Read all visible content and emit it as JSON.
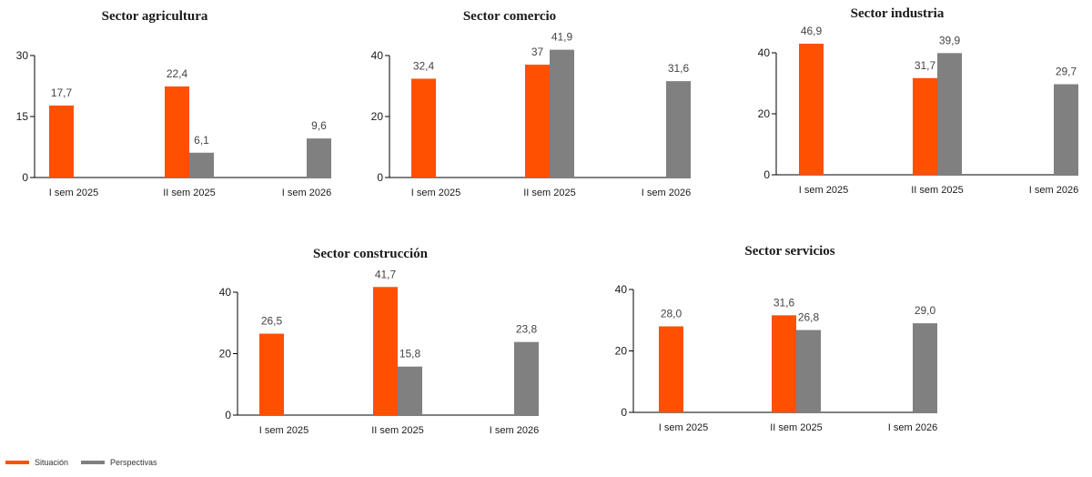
{
  "colors": {
    "situacion": "#FF5000",
    "perspectivas": "#808080"
  },
  "legend": {
    "items": [
      "Situación",
      "Perspectivas"
    ]
  },
  "chart_data": [
    {
      "type": "bar",
      "title": "Sector agricultura",
      "categories": [
        "I sem 2025",
        "II sem 2025",
        "I sem 2026"
      ],
      "yticks": [
        "0",
        "15",
        "30"
      ],
      "ylim": [
        0,
        30
      ],
      "series": [
        {
          "name": "Situación",
          "values": [
            17.7,
            22.4,
            null
          ],
          "labels": [
            "17,7",
            "22,4",
            ""
          ]
        },
        {
          "name": "Perspectivas",
          "values": [
            null,
            6.1,
            9.6
          ],
          "labels": [
            "",
            "6,1",
            "9,6"
          ]
        }
      ]
    },
    {
      "type": "bar",
      "title": "Sector comercio",
      "categories": [
        "I sem 2025",
        "II sem 2025",
        "I sem 2026"
      ],
      "yticks": [
        "0",
        "20",
        "40"
      ],
      "ylim": [
        0,
        40
      ],
      "series": [
        {
          "name": "Situación",
          "values": [
            32.4,
            37,
            null
          ],
          "labels": [
            "32,4",
            "37",
            ""
          ]
        },
        {
          "name": "Perspectivas",
          "values": [
            null,
            41.9,
            31.6
          ],
          "labels": [
            "",
            "41,9",
            "31,6"
          ]
        }
      ]
    },
    {
      "type": "bar",
      "title": "Sector industria",
      "categories": [
        "I sem 2025",
        "II sem 2025",
        "I sem 2026"
      ],
      "yticks": [
        "0",
        "20",
        "40"
      ],
      "ylim": [
        0,
        40
      ],
      "series": [
        {
          "name": "Situación",
          "values": [
            46.9,
            31.7,
            null
          ],
          "labels": [
            "46,9",
            "31,7",
            ""
          ]
        },
        {
          "name": "Perspectivas",
          "values": [
            null,
            39.9,
            29.7
          ],
          "labels": [
            "",
            "39,9",
            "29,7"
          ]
        }
      ]
    },
    {
      "type": "bar",
      "title": "Sector construcción",
      "categories": [
        "I sem 2025",
        "II sem 2025",
        "I sem 2026"
      ],
      "yticks": [
        "0",
        "20",
        "40"
      ],
      "ylim": [
        0,
        40
      ],
      "series": [
        {
          "name": "Situación",
          "values": [
            26.5,
            41.7,
            null
          ],
          "labels": [
            "26,5",
            "41,7",
            ""
          ]
        },
        {
          "name": "Perspectivas",
          "values": [
            null,
            15.8,
            23.8
          ],
          "labels": [
            "",
            "15,8",
            "23,8"
          ]
        }
      ]
    },
    {
      "type": "bar",
      "title": "Sector servicios",
      "categories": [
        "I sem 2025",
        "II sem 2025",
        "I sem 2026"
      ],
      "yticks": [
        "0",
        "20",
        "40"
      ],
      "ylim": [
        0,
        40
      ],
      "series": [
        {
          "name": "Situación",
          "values": [
            28.0,
            31.6,
            null
          ],
          "labels": [
            "28,0",
            "31,6",
            ""
          ]
        },
        {
          "name": "Perspectivas",
          "values": [
            null,
            26.8,
            29.0
          ],
          "labels": [
            "",
            "26,8",
            "29,0"
          ]
        }
      ]
    }
  ]
}
